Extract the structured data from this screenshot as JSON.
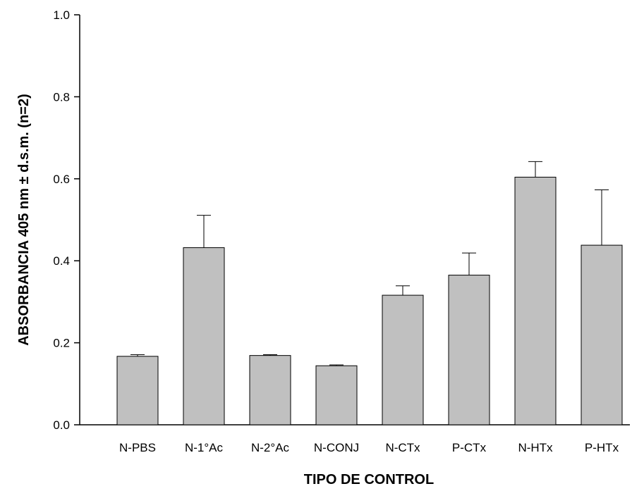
{
  "chart_data": {
    "type": "bar",
    "title": "",
    "xlabel": "TIPO DE CONTROL",
    "ylabel": "ABSORBANCIA 405 nm ± d.s.m. (n=2)",
    "categories": [
      "N-PBS",
      "N-1°Ac",
      "N-2°Ac",
      "N-CONJ",
      "N-CTx",
      "P-CTx",
      "N-HTx",
      "P-HTx"
    ],
    "values": [
      0.167,
      0.432,
      0.169,
      0.144,
      0.316,
      0.365,
      0.604,
      0.438
    ],
    "errors": [
      0.004,
      0.079,
      0.002,
      0.002,
      0.023,
      0.054,
      0.038,
      0.135
    ],
    "ylim": [
      0.0,
      1.0
    ],
    "yticks": [
      "0.0",
      "0.2",
      "0.4",
      "0.6",
      "0.8",
      "1.0"
    ],
    "grid": false,
    "bar_color": "#c0c0c0",
    "bar_edge_color": "#000000"
  }
}
